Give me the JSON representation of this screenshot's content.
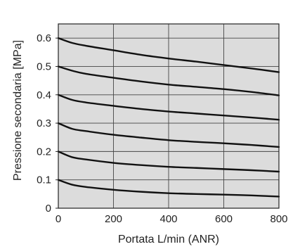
{
  "chart_data": {
    "type": "line",
    "title": "",
    "xlabel": "Portata L/min (ANR)",
    "ylabel": "Pressione secondaria [MPa]",
    "xlim": [
      0,
      800
    ],
    "ylim": [
      0,
      0.65
    ],
    "xticks": [
      0,
      200,
      400,
      600,
      800
    ],
    "xtick_labels": [
      "0",
      "200",
      "400",
      "600",
      "800"
    ],
    "yticks": [
      0,
      0.1,
      0.2,
      0.3,
      0.4,
      0.5,
      0.6
    ],
    "ytick_labels": [
      "0",
      "0.1",
      "0.2",
      "0.3",
      "0.4",
      "0.5",
      "0.6"
    ],
    "grid": true,
    "plot_background": "#dcdcdc",
    "line_color": "#111111",
    "series": [
      {
        "x": [
          0,
          50,
          100,
          200,
          300,
          400,
          500,
          600,
          700,
          800
        ],
        "values": [
          0.1,
          0.083,
          0.075,
          0.065,
          0.058,
          0.053,
          0.05,
          0.048,
          0.045,
          0.041
        ]
      },
      {
        "x": [
          0,
          50,
          100,
          200,
          300,
          400,
          500,
          600,
          700,
          800
        ],
        "values": [
          0.2,
          0.18,
          0.172,
          0.16,
          0.152,
          0.146,
          0.142,
          0.138,
          0.134,
          0.129
        ]
      },
      {
        "x": [
          0,
          50,
          100,
          200,
          300,
          400,
          500,
          600,
          700,
          800
        ],
        "values": [
          0.3,
          0.28,
          0.272,
          0.259,
          0.249,
          0.24,
          0.234,
          0.229,
          0.223,
          0.216
        ]
      },
      {
        "x": [
          0,
          50,
          100,
          200,
          300,
          400,
          500,
          600,
          700,
          800
        ],
        "values": [
          0.4,
          0.382,
          0.373,
          0.361,
          0.35,
          0.341,
          0.334,
          0.327,
          0.32,
          0.312
        ]
      },
      {
        "x": [
          0,
          50,
          100,
          200,
          300,
          400,
          500,
          600,
          700,
          800
        ],
        "values": [
          0.5,
          0.485,
          0.474,
          0.46,
          0.447,
          0.436,
          0.428,
          0.42,
          0.41,
          0.398
        ]
      },
      {
        "x": [
          0,
          50,
          100,
          200,
          300,
          400,
          500,
          600,
          700,
          800
        ],
        "values": [
          0.6,
          0.583,
          0.573,
          0.557,
          0.541,
          0.528,
          0.517,
          0.505,
          0.493,
          0.48
        ]
      }
    ]
  }
}
